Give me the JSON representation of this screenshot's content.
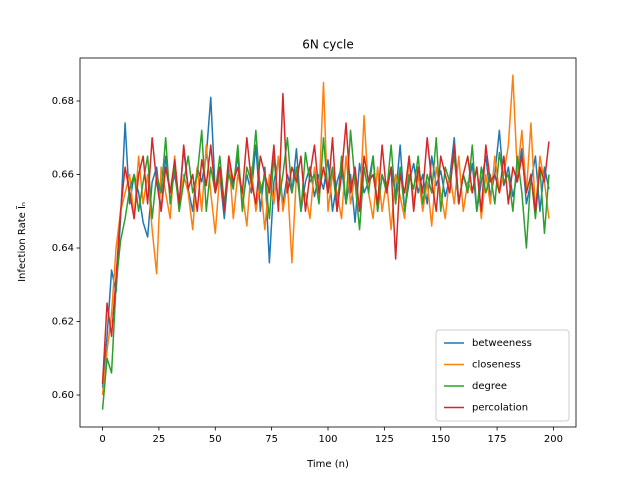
{
  "chart_data": {
    "type": "line",
    "title": "6N cycle",
    "xlabel": "Time (n)",
    "ylabel": "Infection Rate Ĩₙ",
    "xlim": [
      -10,
      210
    ],
    "ylim": [
      0.5913,
      0.6917
    ],
    "xticks": [
      0,
      25,
      50,
      75,
      100,
      125,
      150,
      175,
      200
    ],
    "yticks": [
      {
        "value": 0.6,
        "label": "0.60"
      },
      {
        "value": 0.62,
        "label": "0.62"
      },
      {
        "value": 0.64,
        "label": "0.64"
      },
      {
        "value": 0.66,
        "label": "0.66"
      },
      {
        "value": 0.68,
        "label": "0.68"
      }
    ],
    "legend": "lower right",
    "grid": false,
    "x": [
      0,
      2,
      4,
      6,
      8,
      10,
      12,
      14,
      16,
      18,
      20,
      22,
      24,
      26,
      28,
      30,
      32,
      34,
      36,
      38,
      40,
      42,
      44,
      46,
      48,
      50,
      52,
      54,
      56,
      58,
      60,
      62,
      64,
      66,
      68,
      70,
      72,
      74,
      76,
      78,
      80,
      82,
      84,
      86,
      88,
      90,
      92,
      94,
      96,
      98,
      100,
      102,
      104,
      106,
      108,
      110,
      112,
      114,
      116,
      118,
      120,
      122,
      124,
      126,
      128,
      130,
      132,
      134,
      136,
      138,
      140,
      142,
      144,
      146,
      148,
      150,
      152,
      154,
      156,
      158,
      160,
      162,
      164,
      166,
      168,
      170,
      172,
      174,
      176,
      178,
      180,
      182,
      184,
      186,
      188,
      190,
      192,
      194,
      196,
      198
    ],
    "series": [
      {
        "name": "betweeness",
        "color": "#1f77b4",
        "values": [
          0.602,
          0.616,
          0.634,
          0.628,
          0.648,
          0.674,
          0.652,
          0.66,
          0.655,
          0.647,
          0.643,
          0.658,
          0.662,
          0.65,
          0.665,
          0.655,
          0.66,
          0.652,
          0.667,
          0.656,
          0.65,
          0.662,
          0.658,
          0.665,
          0.681,
          0.655,
          0.66,
          0.648,
          0.662,
          0.657,
          0.665,
          0.652,
          0.66,
          0.655,
          0.668,
          0.65,
          0.662,
          0.636,
          0.658,
          0.664,
          0.652,
          0.66,
          0.655,
          0.667,
          0.65,
          0.658,
          0.662,
          0.654,
          0.66,
          0.656,
          0.664,
          0.65,
          0.658,
          0.662,
          0.652,
          0.66,
          0.647,
          0.663,
          0.655,
          0.658,
          0.665,
          0.65,
          0.66,
          0.656,
          0.662,
          0.654,
          0.668,
          0.65,
          0.658,
          0.663,
          0.655,
          0.66,
          0.652,
          0.665,
          0.657,
          0.661,
          0.654,
          0.659,
          0.67,
          0.652,
          0.66,
          0.656,
          0.663,
          0.65,
          0.658,
          0.665,
          0.654,
          0.66,
          0.672,
          0.657,
          0.662,
          0.654,
          0.66,
          0.667,
          0.652,
          0.658,
          0.665,
          0.65,
          0.662,
          0.656
        ]
      },
      {
        "name": "closeness",
        "color": "#ff7f0e",
        "values": [
          0.6,
          0.612,
          0.622,
          0.64,
          0.65,
          0.655,
          0.66,
          0.648,
          0.665,
          0.652,
          0.66,
          0.645,
          0.633,
          0.662,
          0.655,
          0.648,
          0.665,
          0.65,
          0.66,
          0.655,
          0.645,
          0.662,
          0.65,
          0.668,
          0.655,
          0.644,
          0.66,
          0.652,
          0.665,
          0.648,
          0.66,
          0.655,
          0.646,
          0.662,
          0.65,
          0.658,
          0.645,
          0.66,
          0.652,
          0.665,
          0.65,
          0.658,
          0.636,
          0.66,
          0.652,
          0.655,
          0.648,
          0.662,
          0.654,
          0.685,
          0.65,
          0.66,
          0.655,
          0.648,
          0.665,
          0.652,
          0.66,
          0.65,
          0.676,
          0.655,
          0.648,
          0.662,
          0.65,
          0.658,
          0.645,
          0.66,
          0.654,
          0.648,
          0.665,
          0.652,
          0.66,
          0.65,
          0.658,
          0.646,
          0.662,
          0.655,
          0.648,
          0.66,
          0.652,
          0.665,
          0.65,
          0.658,
          0.655,
          0.662,
          0.648,
          0.66,
          0.652,
          0.665,
          0.655,
          0.66,
          0.668,
          0.687,
          0.66,
          0.672,
          0.655,
          0.674,
          0.65,
          0.665,
          0.658,
          0.648
        ]
      },
      {
        "name": "degree",
        "color": "#2ca02c",
        "values": [
          0.596,
          0.61,
          0.606,
          0.63,
          0.642,
          0.648,
          0.656,
          0.66,
          0.65,
          0.658,
          0.665,
          0.648,
          0.66,
          0.655,
          0.67,
          0.652,
          0.662,
          0.65,
          0.658,
          0.665,
          0.655,
          0.66,
          0.672,
          0.65,
          0.662,
          0.655,
          0.665,
          0.652,
          0.66,
          0.656,
          0.668,
          0.65,
          0.662,
          0.658,
          0.672,
          0.655,
          0.66,
          0.648,
          0.665,
          0.652,
          0.66,
          0.67,
          0.655,
          0.662,
          0.65,
          0.666,
          0.658,
          0.66,
          0.652,
          0.67,
          0.655,
          0.662,
          0.65,
          0.665,
          0.652,
          0.672,
          0.658,
          0.645,
          0.662,
          0.655,
          0.665,
          0.65,
          0.66,
          0.655,
          0.668,
          0.652,
          0.662,
          0.65,
          0.66,
          0.656,
          0.665,
          0.652,
          0.66,
          0.655,
          0.67,
          0.65,
          0.662,
          0.658,
          0.665,
          0.652,
          0.66,
          0.655,
          0.668,
          0.65,
          0.662,
          0.655,
          0.66,
          0.652,
          0.666,
          0.658,
          0.66,
          0.65,
          0.665,
          0.655,
          0.64,
          0.66,
          0.648,
          0.662,
          0.644,
          0.66
        ]
      },
      {
        "name": "percolation",
        "color": "#d62728",
        "values": [
          0.603,
          0.625,
          0.616,
          0.632,
          0.65,
          0.662,
          0.655,
          0.648,
          0.66,
          0.665,
          0.652,
          0.67,
          0.658,
          0.65,
          0.662,
          0.655,
          0.664,
          0.652,
          0.668,
          0.656,
          0.66,
          0.65,
          0.664,
          0.657,
          0.668,
          0.655,
          0.662,
          0.65,
          0.665,
          0.658,
          0.662,
          0.655,
          0.67,
          0.658,
          0.652,
          0.665,
          0.66,
          0.655,
          0.668,
          0.65,
          0.682,
          0.655,
          0.662,
          0.658,
          0.665,
          0.65,
          0.66,
          0.668,
          0.655,
          0.662,
          0.655,
          0.67,
          0.65,
          0.66,
          0.674,
          0.655,
          0.662,
          0.65,
          0.665,
          0.658,
          0.66,
          0.652,
          0.668,
          0.655,
          0.662,
          0.637,
          0.66,
          0.655,
          0.665,
          0.65,
          0.662,
          0.655,
          0.67,
          0.658,
          0.65,
          0.665,
          0.66,
          0.655,
          0.668,
          0.652,
          0.66,
          0.665,
          0.655,
          0.662,
          0.65,
          0.668,
          0.658,
          0.66,
          0.655,
          0.665,
          0.652,
          0.662,
          0.658,
          0.665,
          0.655,
          0.66,
          0.65,
          0.662,
          0.658,
          0.669
        ]
      }
    ]
  }
}
